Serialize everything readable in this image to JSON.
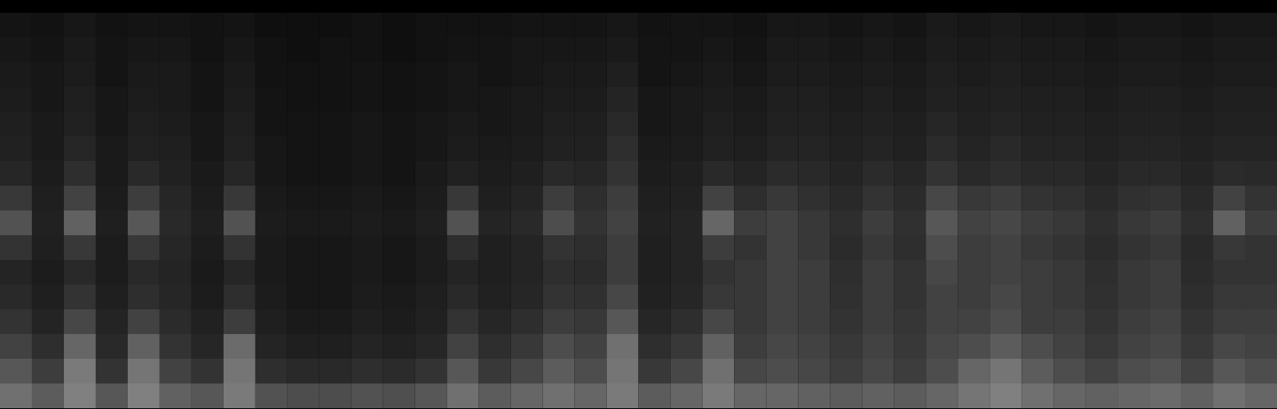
{
  "chart_data": {
    "type": "heatmap",
    "tick_labels": false,
    "zlim": [
      0,
      100
    ],
    "cells": [
      [
        8,
        7,
        9,
        7,
        8,
        8,
        7,
        8,
        6,
        6,
        6,
        7,
        6,
        7,
        7,
        7,
        8,
        8,
        8,
        9,
        7,
        8,
        8,
        7,
        9,
        9,
        8,
        9,
        8,
        10,
        9,
        10,
        9,
        9,
        8,
        9,
        9,
        8,
        9,
        9
      ],
      [
        9,
        8,
        10,
        8,
        9,
        9,
        7,
        9,
        7,
        6,
        7,
        7,
        6,
        7,
        8,
        8,
        9,
        9,
        9,
        10,
        8,
        8,
        9,
        8,
        10,
        10,
        9,
        10,
        9,
        11,
        10,
        11,
        10,
        10,
        9,
        10,
        10,
        9,
        10,
        10
      ],
      [
        10,
        9,
        11,
        8,
        10,
        10,
        8,
        10,
        7,
        7,
        7,
        8,
        7,
        8,
        9,
        8,
        9,
        10,
        10,
        12,
        8,
        9,
        10,
        9,
        11,
        11,
        10,
        11,
        10,
        12,
        11,
        12,
        11,
        11,
        10,
        11,
        11,
        10,
        11,
        11
      ],
      [
        11,
        9,
        12,
        9,
        11,
        10,
        8,
        11,
        8,
        7,
        7,
        8,
        7,
        8,
        9,
        9,
        10,
        11,
        11,
        14,
        9,
        10,
        11,
        10,
        12,
        12,
        11,
        12,
        11,
        13,
        12,
        13,
        12,
        12,
        11,
        12,
        12,
        11,
        12,
        12
      ],
      [
        12,
        10,
        13,
        9,
        12,
        11,
        9,
        12,
        8,
        8,
        8,
        9,
        8,
        9,
        10,
        9,
        10,
        12,
        12,
        16,
        9,
        10,
        12,
        11,
        13,
        13,
        12,
        13,
        12,
        15,
        13,
        14,
        13,
        13,
        12,
        13,
        13,
        12,
        13,
        13
      ],
      [
        13,
        10,
        15,
        10,
        13,
        12,
        9,
        13,
        9,
        8,
        8,
        9,
        8,
        9,
        11,
        10,
        11,
        13,
        13,
        18,
        10,
        11,
        13,
        12,
        14,
        14,
        13,
        14,
        13,
        17,
        14,
        16,
        14,
        14,
        13,
        14,
        14,
        13,
        14,
        14
      ],
      [
        15,
        11,
        18,
        10,
        16,
        13,
        10,
        15,
        9,
        8,
        8,
        9,
        8,
        10,
        13,
        11,
        12,
        16,
        15,
        20,
        11,
        12,
        16,
        14,
        17,
        16,
        14,
        17,
        15,
        20,
        16,
        18,
        16,
        16,
        14,
        16,
        16,
        14,
        17,
        16
      ],
      [
        22,
        12,
        26,
        11,
        24,
        15,
        11,
        22,
        10,
        9,
        9,
        10,
        9,
        11,
        22,
        12,
        14,
        24,
        18,
        24,
        12,
        13,
        26,
        18,
        22,
        19,
        16,
        20,
        17,
        28,
        22,
        24,
        20,
        19,
        16,
        19,
        20,
        16,
        26,
        20
      ],
      [
        32,
        13,
        38,
        12,
        34,
        16,
        12,
        32,
        11,
        10,
        10,
        11,
        10,
        12,
        32,
        14,
        16,
        30,
        20,
        26,
        13,
        14,
        40,
        24,
        26,
        22,
        18,
        24,
        19,
        34,
        26,
        28,
        24,
        22,
        18,
        22,
        24,
        18,
        38,
        24
      ],
      [
        20,
        12,
        22,
        11,
        22,
        15,
        11,
        20,
        10,
        9,
        9,
        10,
        9,
        11,
        18,
        12,
        14,
        20,
        18,
        24,
        12,
        14,
        24,
        20,
        26,
        22,
        17,
        22,
        18,
        30,
        24,
        26,
        22,
        20,
        17,
        20,
        22,
        16,
        22,
        20
      ],
      [
        14,
        11,
        16,
        11,
        16,
        14,
        10,
        15,
        10,
        9,
        9,
        10,
        9,
        11,
        14,
        12,
        14,
        18,
        17,
        24,
        12,
        14,
        20,
        22,
        26,
        24,
        18,
        24,
        20,
        28,
        24,
        26,
        24,
        22,
        18,
        22,
        24,
        17,
        20,
        20
      ],
      [
        16,
        12,
        20,
        12,
        18,
        15,
        11,
        18,
        11,
        9,
        9,
        11,
        10,
        12,
        16,
        13,
        15,
        20,
        19,
        28,
        13,
        15,
        22,
        22,
        26,
        24,
        19,
        24,
        20,
        26,
        24,
        28,
        24,
        22,
        19,
        22,
        24,
        18,
        22,
        22
      ],
      [
        20,
        14,
        28,
        14,
        26,
        17,
        13,
        24,
        12,
        10,
        10,
        12,
        11,
        13,
        20,
        15,
        18,
        24,
        22,
        34,
        15,
        18,
        28,
        22,
        26,
        24,
        20,
        24,
        21,
        26,
        26,
        30,
        24,
        24,
        20,
        24,
        26,
        20,
        24,
        24
      ],
      [
        26,
        18,
        40,
        16,
        38,
        20,
        15,
        42,
        14,
        12,
        12,
        14,
        13,
        15,
        26,
        18,
        22,
        30,
        26,
        44,
        18,
        22,
        38,
        24,
        28,
        26,
        22,
        26,
        22,
        28,
        30,
        36,
        30,
        26,
        22,
        26,
        28,
        22,
        28,
        26
      ],
      [
        34,
        24,
        48,
        20,
        46,
        26,
        20,
        46,
        18,
        16,
        16,
        18,
        17,
        20,
        34,
        22,
        28,
        36,
        30,
        46,
        22,
        28,
        44,
        28,
        30,
        28,
        24,
        28,
        24,
        30,
        40,
        46,
        36,
        30,
        26,
        30,
        32,
        26,
        34,
        30
      ],
      [
        44,
        36,
        50,
        34,
        50,
        38,
        34,
        48,
        32,
        30,
        30,
        32,
        31,
        34,
        44,
        36,
        40,
        44,
        40,
        48,
        36,
        40,
        48,
        40,
        40,
        38,
        36,
        38,
        36,
        40,
        46,
        50,
        44,
        40,
        38,
        40,
        42,
        38,
        44,
        40
      ]
    ]
  }
}
